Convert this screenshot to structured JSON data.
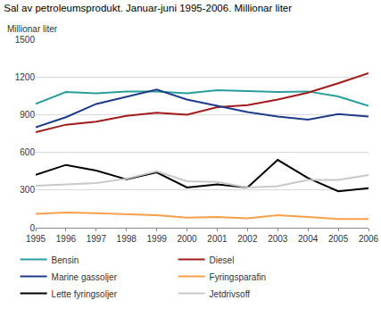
{
  "chart_data": {
    "type": "line",
    "title": "Sal av petroleumsprodukt. Januar-juni 1995-2006. Millionar liter",
    "ylabel": "Millionar liter",
    "x": [
      1995,
      1996,
      1997,
      1998,
      1999,
      2000,
      2001,
      2002,
      2003,
      2004,
      2005,
      2006
    ],
    "xlim": [
      1995,
      2006
    ],
    "xticks": [
      1995,
      1996,
      1997,
      1998,
      1999,
      2000,
      2001,
      2002,
      2003,
      2004,
      2005,
      2006
    ],
    "ylim": [
      0,
      1500
    ],
    "yticks": [
      0,
      300,
      600,
      900,
      1200,
      1500
    ],
    "grid": true,
    "legend": "bottom",
    "series": [
      {
        "name": "Bensin",
        "color": "#2a9d9d",
        "values": [
          985,
          1080,
          1070,
          1085,
          1085,
          1070,
          1095,
          1090,
          1080,
          1085,
          1045,
          970
        ]
      },
      {
        "name": "Diesel",
        "color": "#a01c1c",
        "values": [
          760,
          820,
          845,
          890,
          915,
          900,
          960,
          975,
          1020,
          1075,
          1150,
          1230
        ]
      },
      {
        "name": "Marine gassoljer",
        "color": "#1f3c88",
        "values": [
          800,
          880,
          985,
          1045,
          1100,
          1020,
          970,
          920,
          885,
          860,
          905,
          885
        ]
      },
      {
        "name": "Fyringsparafin",
        "color": "#f5a04a",
        "values": [
          110,
          120,
          115,
          105,
          100,
          80,
          85,
          75,
          100,
          85,
          70,
          70
        ]
      },
      {
        "name": "Lette fyringsoljer",
        "color": "#000000",
        "values": [
          420,
          500,
          455,
          385,
          440,
          320,
          345,
          320,
          540,
          395,
          290,
          315
        ]
      },
      {
        "name": "Jetdrivsoff",
        "color": "#c8c8c8",
        "values": [
          335,
          345,
          355,
          390,
          450,
          370,
          365,
          320,
          330,
          380,
          380,
          420
        ]
      }
    ]
  }
}
